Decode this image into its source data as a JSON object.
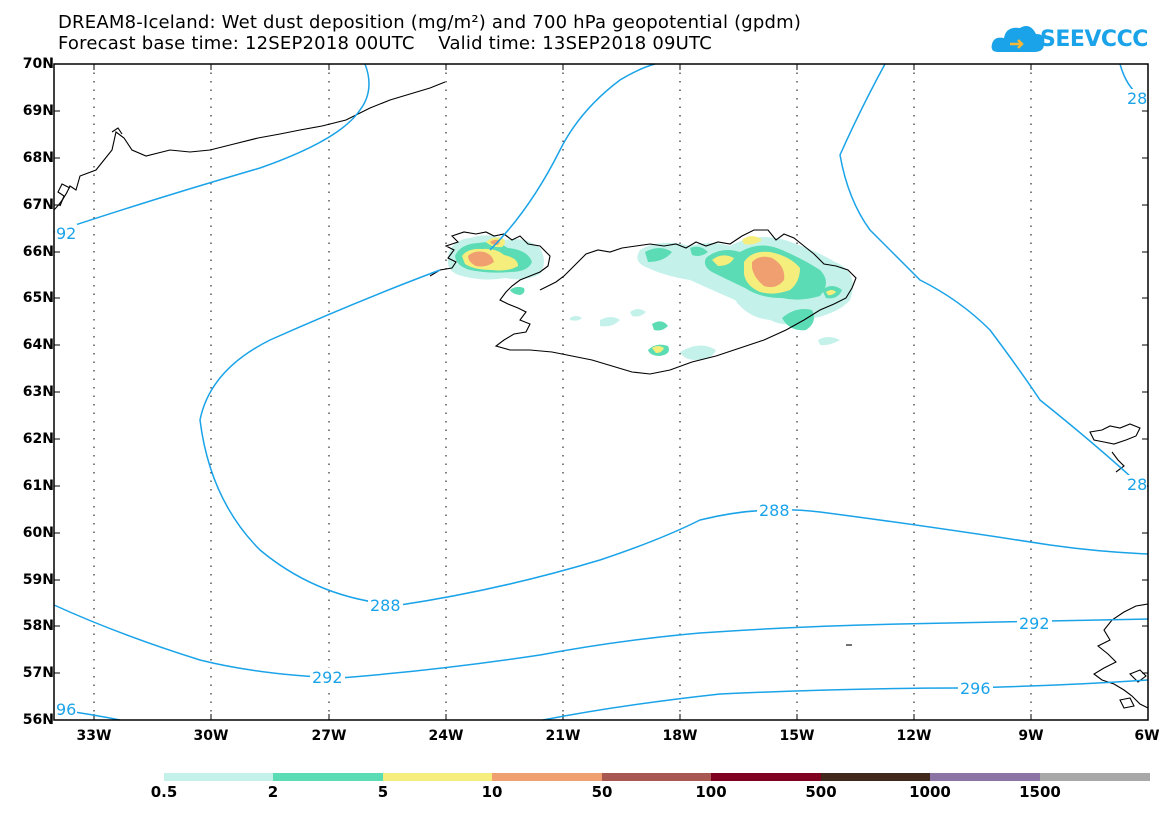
{
  "title": {
    "line1": "DREAM8-Iceland: Wet dust deposition (mg/m²) and 700 hPa geopotential (gpdm)",
    "line2": "Forecast base time: 12SEP2018 00UTC    Valid time: 13SEP2018 09UTC"
  },
  "logo": {
    "text": "SEEVCCC",
    "icon": "cloud-icon",
    "color": "#1aa3e8"
  },
  "map": {
    "lat_labels": [
      "70N",
      "69N",
      "68N",
      "67N",
      "66N",
      "65N",
      "64N",
      "63N",
      "62N",
      "61N",
      "60N",
      "59N",
      "58N",
      "57N",
      "56N"
    ],
    "lon_labels": [
      "33W",
      "30W",
      "27W",
      "24W",
      "21W",
      "18W",
      "15W",
      "12W",
      "9W",
      "6W"
    ],
    "contour_color": "#1aa3e8",
    "contour_labels": {
      "c288_a": "288",
      "c288_b": "288",
      "c292_a": "292",
      "c292_b": "292",
      "c292_c": "92",
      "c296_a": "296",
      "c296_b": "96",
      "c28_a": "28",
      "c28_b": "28"
    }
  },
  "colorbar": {
    "colors": [
      "#c4f2ea",
      "#5cdcb4",
      "#f5ee7c",
      "#f0a070",
      "#a85850",
      "#800020",
      "#40281c",
      "#8c74a4",
      "#a8a8a8"
    ],
    "labels": [
      "0.5",
      "2",
      "5",
      "10",
      "50",
      "100",
      "500",
      "1000",
      "1500"
    ]
  }
}
